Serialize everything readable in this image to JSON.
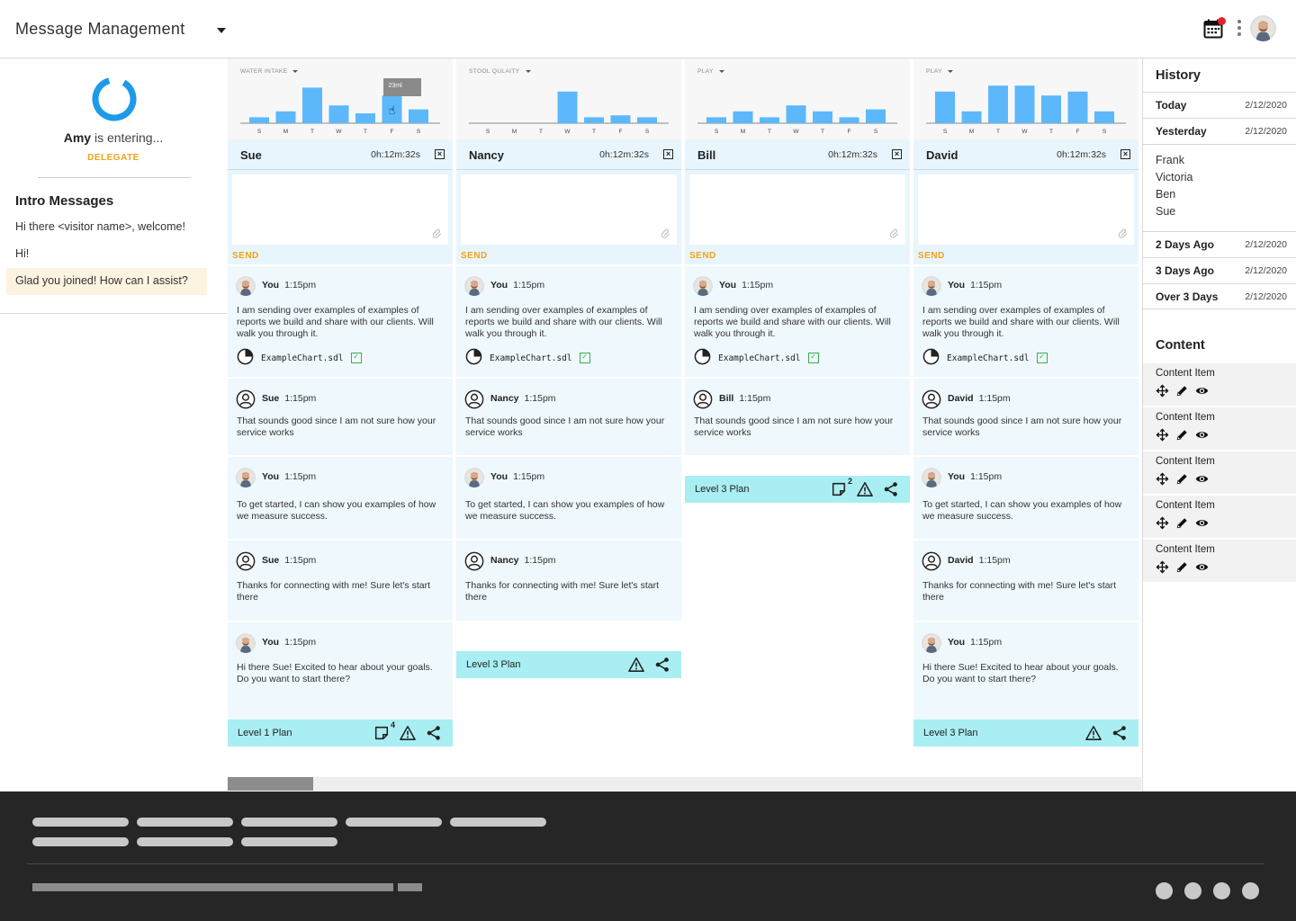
{
  "header": {
    "title": "Message Management",
    "icons": [
      "calendar-icon",
      "kebab-menu-icon",
      "avatar"
    ],
    "notification_color": "#e8212b"
  },
  "agent": {
    "name": "Amy",
    "status": " is entering...",
    "delegate_label": "DELEGATE"
  },
  "intro": {
    "title": "Intro Messages",
    "messages": [
      "Hi there <visitor name>, welcome!",
      "Hi!",
      "Glad you joined! How can I assist?"
    ]
  },
  "colors": {
    "accent": "#f0a317",
    "bar": "#5cb8fb",
    "plan": "#a9eef3",
    "panel": "#e9f5fc"
  },
  "columns": [
    {
      "chart": {
        "title": "WATER INTAKE",
        "days": [
          "S",
          "M",
          "T",
          "W",
          "T",
          "F",
          "S"
        ],
        "values": [
          3,
          6,
          18,
          9,
          5,
          14,
          7
        ],
        "ylim": [
          0,
          20
        ],
        "tooltip": "23ml"
      },
      "name": "Sue",
      "timer": "0h:12m:32s",
      "send_label": "SEND",
      "messages": [
        {
          "sender": "You",
          "time": "1:15pm",
          "text": "I am sending over examples of examples of reports we build and share with our clients. Will walk you through it.",
          "file": "ExampleChart.sdl"
        },
        {
          "sender": "Sue",
          "time": "1:15pm",
          "text": "That sounds good since I am not sure how your service works"
        },
        {
          "sender": "You",
          "time": "1:15pm",
          "text": "To get started, I can show you examples of how we measure success."
        },
        {
          "sender": "Sue",
          "time": "1:15pm",
          "text": "Thanks for connecting with me! Sure let's start there"
        },
        {
          "sender": "You",
          "time": "1:15pm",
          "text": "Hi there Sue! Excited to hear about your goals. Do you want to start there?"
        }
      ],
      "plan": {
        "label": "Level 1 Plan",
        "notes_count": "4"
      }
    },
    {
      "chart": {
        "title": "STOOL QULAITY",
        "days": [
          "S",
          "M",
          "T",
          "W",
          "T",
          "F",
          "S"
        ],
        "values": [
          0,
          0,
          0,
          16,
          3,
          4,
          3
        ],
        "ylim": [
          0,
          20
        ]
      },
      "name": "Nancy",
      "timer": "0h:12m:32s",
      "send_label": "SEND",
      "messages": [
        {
          "sender": "You",
          "time": "1:15pm",
          "text": "I am sending over examples of examples of reports we build and share with our clients. Will walk you through it.",
          "file": "ExampleChart.sdl"
        },
        {
          "sender": "Nancy",
          "time": "1:15pm",
          "text": "That sounds good since I am not sure how your service works"
        },
        {
          "sender": "You",
          "time": "1:15pm",
          "text": "To get started, I can show you examples of how we measure success."
        },
        {
          "sender": "Nancy",
          "time": "1:15pm",
          "text": "Thanks for connecting with me! Sure let's start there"
        }
      ],
      "plan": {
        "label": "Level 3 Plan"
      }
    },
    {
      "chart": {
        "title": "PLAY",
        "days": [
          "S",
          "M",
          "T",
          "W",
          "T",
          "F",
          "S"
        ],
        "values": [
          3,
          6,
          3,
          9,
          6,
          3,
          7
        ],
        "ylim": [
          0,
          20
        ]
      },
      "name": "Bill",
      "timer": "0h:12m:32s",
      "send_label": "SEND",
      "messages": [
        {
          "sender": "You",
          "time": "1:15pm",
          "text": "I am sending over examples of examples of reports we build and share with our clients. Will walk you through it.",
          "file": "ExampleChart.sdl"
        },
        {
          "sender": "Bill",
          "time": "1:15pm",
          "text": "That sounds good since I am not sure how your service works"
        }
      ],
      "plan": {
        "label": "Level 3 Plan",
        "notes_count": "2"
      }
    },
    {
      "chart": {
        "title": "PLAY",
        "days": [
          "S",
          "M",
          "T",
          "W",
          "T",
          "F",
          "S"
        ],
        "values": [
          16,
          6,
          19,
          19,
          14,
          16,
          6
        ],
        "ylim": [
          0,
          20
        ]
      },
      "name": "David",
      "timer": "0h:12m:32s",
      "send_label": "SEND",
      "messages": [
        {
          "sender": "You",
          "time": "1:15pm",
          "text": "I am sending over examples of examples of reports we build and share with our clients. Will walk you through it.",
          "file": "ExampleChart.sdl"
        },
        {
          "sender": "David",
          "time": "1:15pm",
          "text": "That sounds good since I am not sure how your service works"
        },
        {
          "sender": "You",
          "time": "1:15pm",
          "text": "To get started, I can show you examples of how we measure success."
        },
        {
          "sender": "David",
          "time": "1:15pm",
          "text": "Thanks for connecting with me! Sure let's start there"
        },
        {
          "sender": "You",
          "time": "1:15pm",
          "text": "Hi there Sue! Excited to hear about your goals. Do you want to start there?"
        }
      ],
      "plan": {
        "label": "Level 3 Plan"
      }
    }
  ],
  "history": {
    "title": "History",
    "groups": [
      {
        "label": "Today",
        "date": "2/12/2020"
      },
      {
        "label": "Yesterday",
        "date": "2/12/2020",
        "names": [
          "Frank",
          "Victoria",
          "Ben",
          "Sue"
        ]
      },
      {
        "label": "2 Days Ago",
        "date": "2/12/2020"
      },
      {
        "label": "3 Days Ago",
        "date": "2/12/2020"
      },
      {
        "label": "Over 3 Days",
        "date": "2/12/2020"
      }
    ]
  },
  "content": {
    "title": "Content",
    "items": [
      "Content Item",
      "Content Item",
      "Content Item",
      "Content Item",
      "Content Item"
    ]
  }
}
